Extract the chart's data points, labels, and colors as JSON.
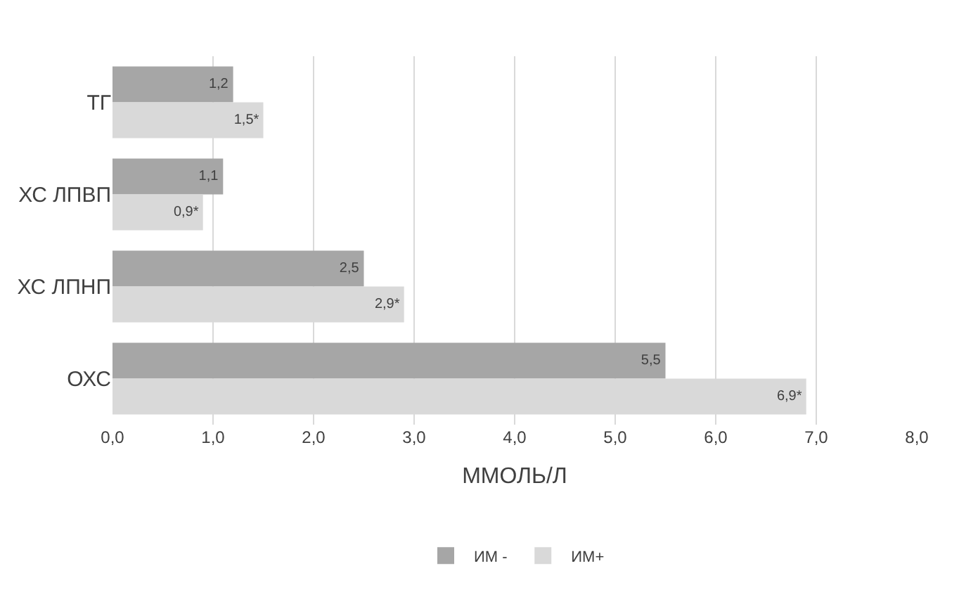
{
  "chart_data": {
    "type": "bar",
    "orientation": "horizontal",
    "xlabel": "ММОЛЬ/Л",
    "categories": [
      "ТГ",
      "ХС ЛПВП",
      "ХС ЛПНП",
      "ОХС"
    ],
    "series": [
      {
        "name": "ИМ -",
        "color": "#a6a6a6",
        "values": [
          1.2,
          1.1,
          2.5,
          5.5
        ],
        "value_labels": [
          "1,2",
          "1,1",
          "2,5",
          "5,5"
        ]
      },
      {
        "name": "ИМ+",
        "color": "#d9d9d9",
        "values": [
          1.5,
          0.9,
          2.9,
          6.9
        ],
        "value_labels": [
          "1,5*",
          "0,9*",
          "2,9*",
          "6,9*"
        ]
      }
    ],
    "xlim": [
      0,
      8
    ],
    "xticks": [
      {
        "value": 0,
        "label": "0,0"
      },
      {
        "value": 1,
        "label": "1,0"
      },
      {
        "value": 2,
        "label": "2,0"
      },
      {
        "value": 3,
        "label": "3,0"
      },
      {
        "value": 4,
        "label": "4,0"
      },
      {
        "value": 5,
        "label": "5,0"
      },
      {
        "value": 6,
        "label": "6,0"
      },
      {
        "value": 7,
        "label": "7,0"
      },
      {
        "value": 8,
        "label": "8,0"
      }
    ],
    "grid": "x",
    "legend": "bottom"
  }
}
